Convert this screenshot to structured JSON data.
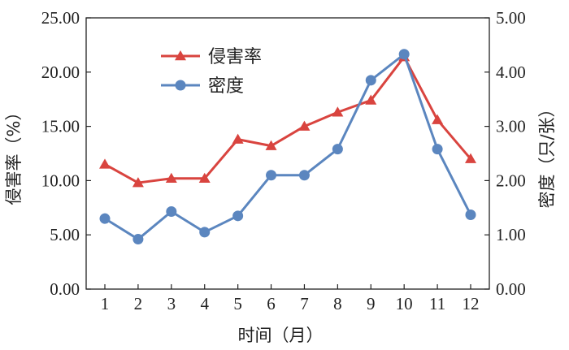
{
  "chart_data": {
    "type": "line",
    "xlabel": "时间（月）",
    "ylabel_left": "侵害率（%）",
    "ylabel_right": "密度（只/张）",
    "x": [
      1,
      2,
      3,
      4,
      5,
      6,
      7,
      8,
      9,
      10,
      11,
      12
    ],
    "x_ticks": [
      "1",
      "2",
      "3",
      "4",
      "5",
      "6",
      "7",
      "8",
      "9",
      "10",
      "11",
      "12"
    ],
    "ylim_left": [
      0,
      25
    ],
    "ylim_right": [
      0,
      5
    ],
    "y_ticks_left": [
      "0.00",
      "5.00",
      "10.00",
      "15.00",
      "20.00",
      "25.00"
    ],
    "y_ticks_right": [
      "0.00",
      "1.00",
      "2.00",
      "3.00",
      "4.00",
      "5.00"
    ],
    "grid": false,
    "legend_position": "top-left",
    "series": [
      {
        "name": "侵害率",
        "axis": "left",
        "marker": "triangle",
        "color": "#d9443f",
        "values": [
          11.5,
          9.8,
          10.2,
          10.2,
          13.8,
          13.2,
          15.0,
          16.3,
          17.4,
          21.4,
          15.6,
          12.0
        ]
      },
      {
        "name": "密度",
        "axis": "right",
        "marker": "circle",
        "color": "#5b86bf",
        "values": [
          1.3,
          0.92,
          1.43,
          1.05,
          1.35,
          2.1,
          2.1,
          2.58,
          3.85,
          4.33,
          2.58,
          1.37
        ]
      }
    ]
  }
}
